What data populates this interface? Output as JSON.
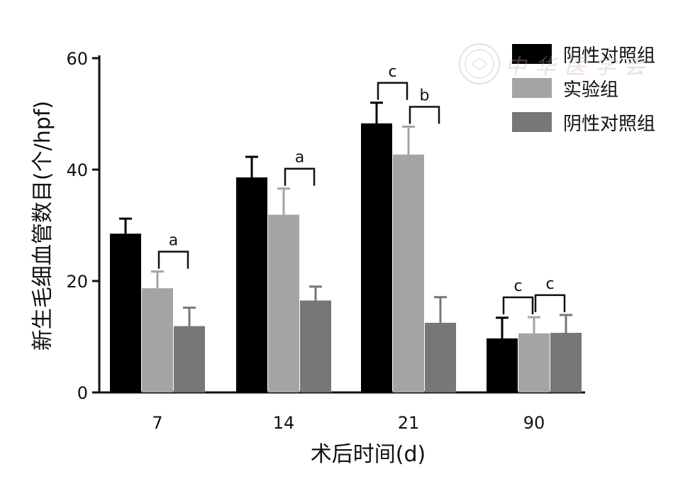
{
  "chart_data": {
    "type": "bar",
    "categories": [
      "7",
      "14",
      "21",
      "90"
    ],
    "series": [
      {
        "name": "阴性对照组",
        "color": "#000000",
        "values": [
          28.5,
          38.6,
          48.3,
          9.7
        ],
        "errors": [
          2.7,
          3.7,
          3.7,
          3.7
        ]
      },
      {
        "name": "实验组",
        "color": "#a4a4a4",
        "values": [
          18.7,
          31.9,
          42.7,
          10.6
        ],
        "errors": [
          3.0,
          4.7,
          5.0,
          2.9
        ]
      },
      {
        "name": "阴性对照组",
        "color": "#777777",
        "values": [
          11.9,
          16.5,
          12.5,
          10.7
        ],
        "errors": [
          3.3,
          2.5,
          4.6,
          3.2
        ]
      }
    ],
    "xlabel": "术后时间(d)",
    "ylabel": "新生毛细血管数目(个/hpf)",
    "ylim": [
      0,
      60
    ],
    "yticks": [
      0,
      20,
      40,
      60
    ],
    "legend_position": "top-right",
    "significance": [
      {
        "category": "7",
        "between": [
          1,
          2
        ],
        "label": "a"
      },
      {
        "category": "14",
        "between": [
          1,
          2
        ],
        "label": "a"
      },
      {
        "category": "21",
        "between": [
          0,
          1
        ],
        "label": "c"
      },
      {
        "category": "21",
        "between": [
          1,
          2
        ],
        "label": "b"
      },
      {
        "category": "90",
        "between": [
          0,
          1
        ],
        "label": "c"
      },
      {
        "category": "90",
        "between": [
          1,
          2
        ],
        "label": "c"
      }
    ],
    "watermark": "中华医学会"
  }
}
